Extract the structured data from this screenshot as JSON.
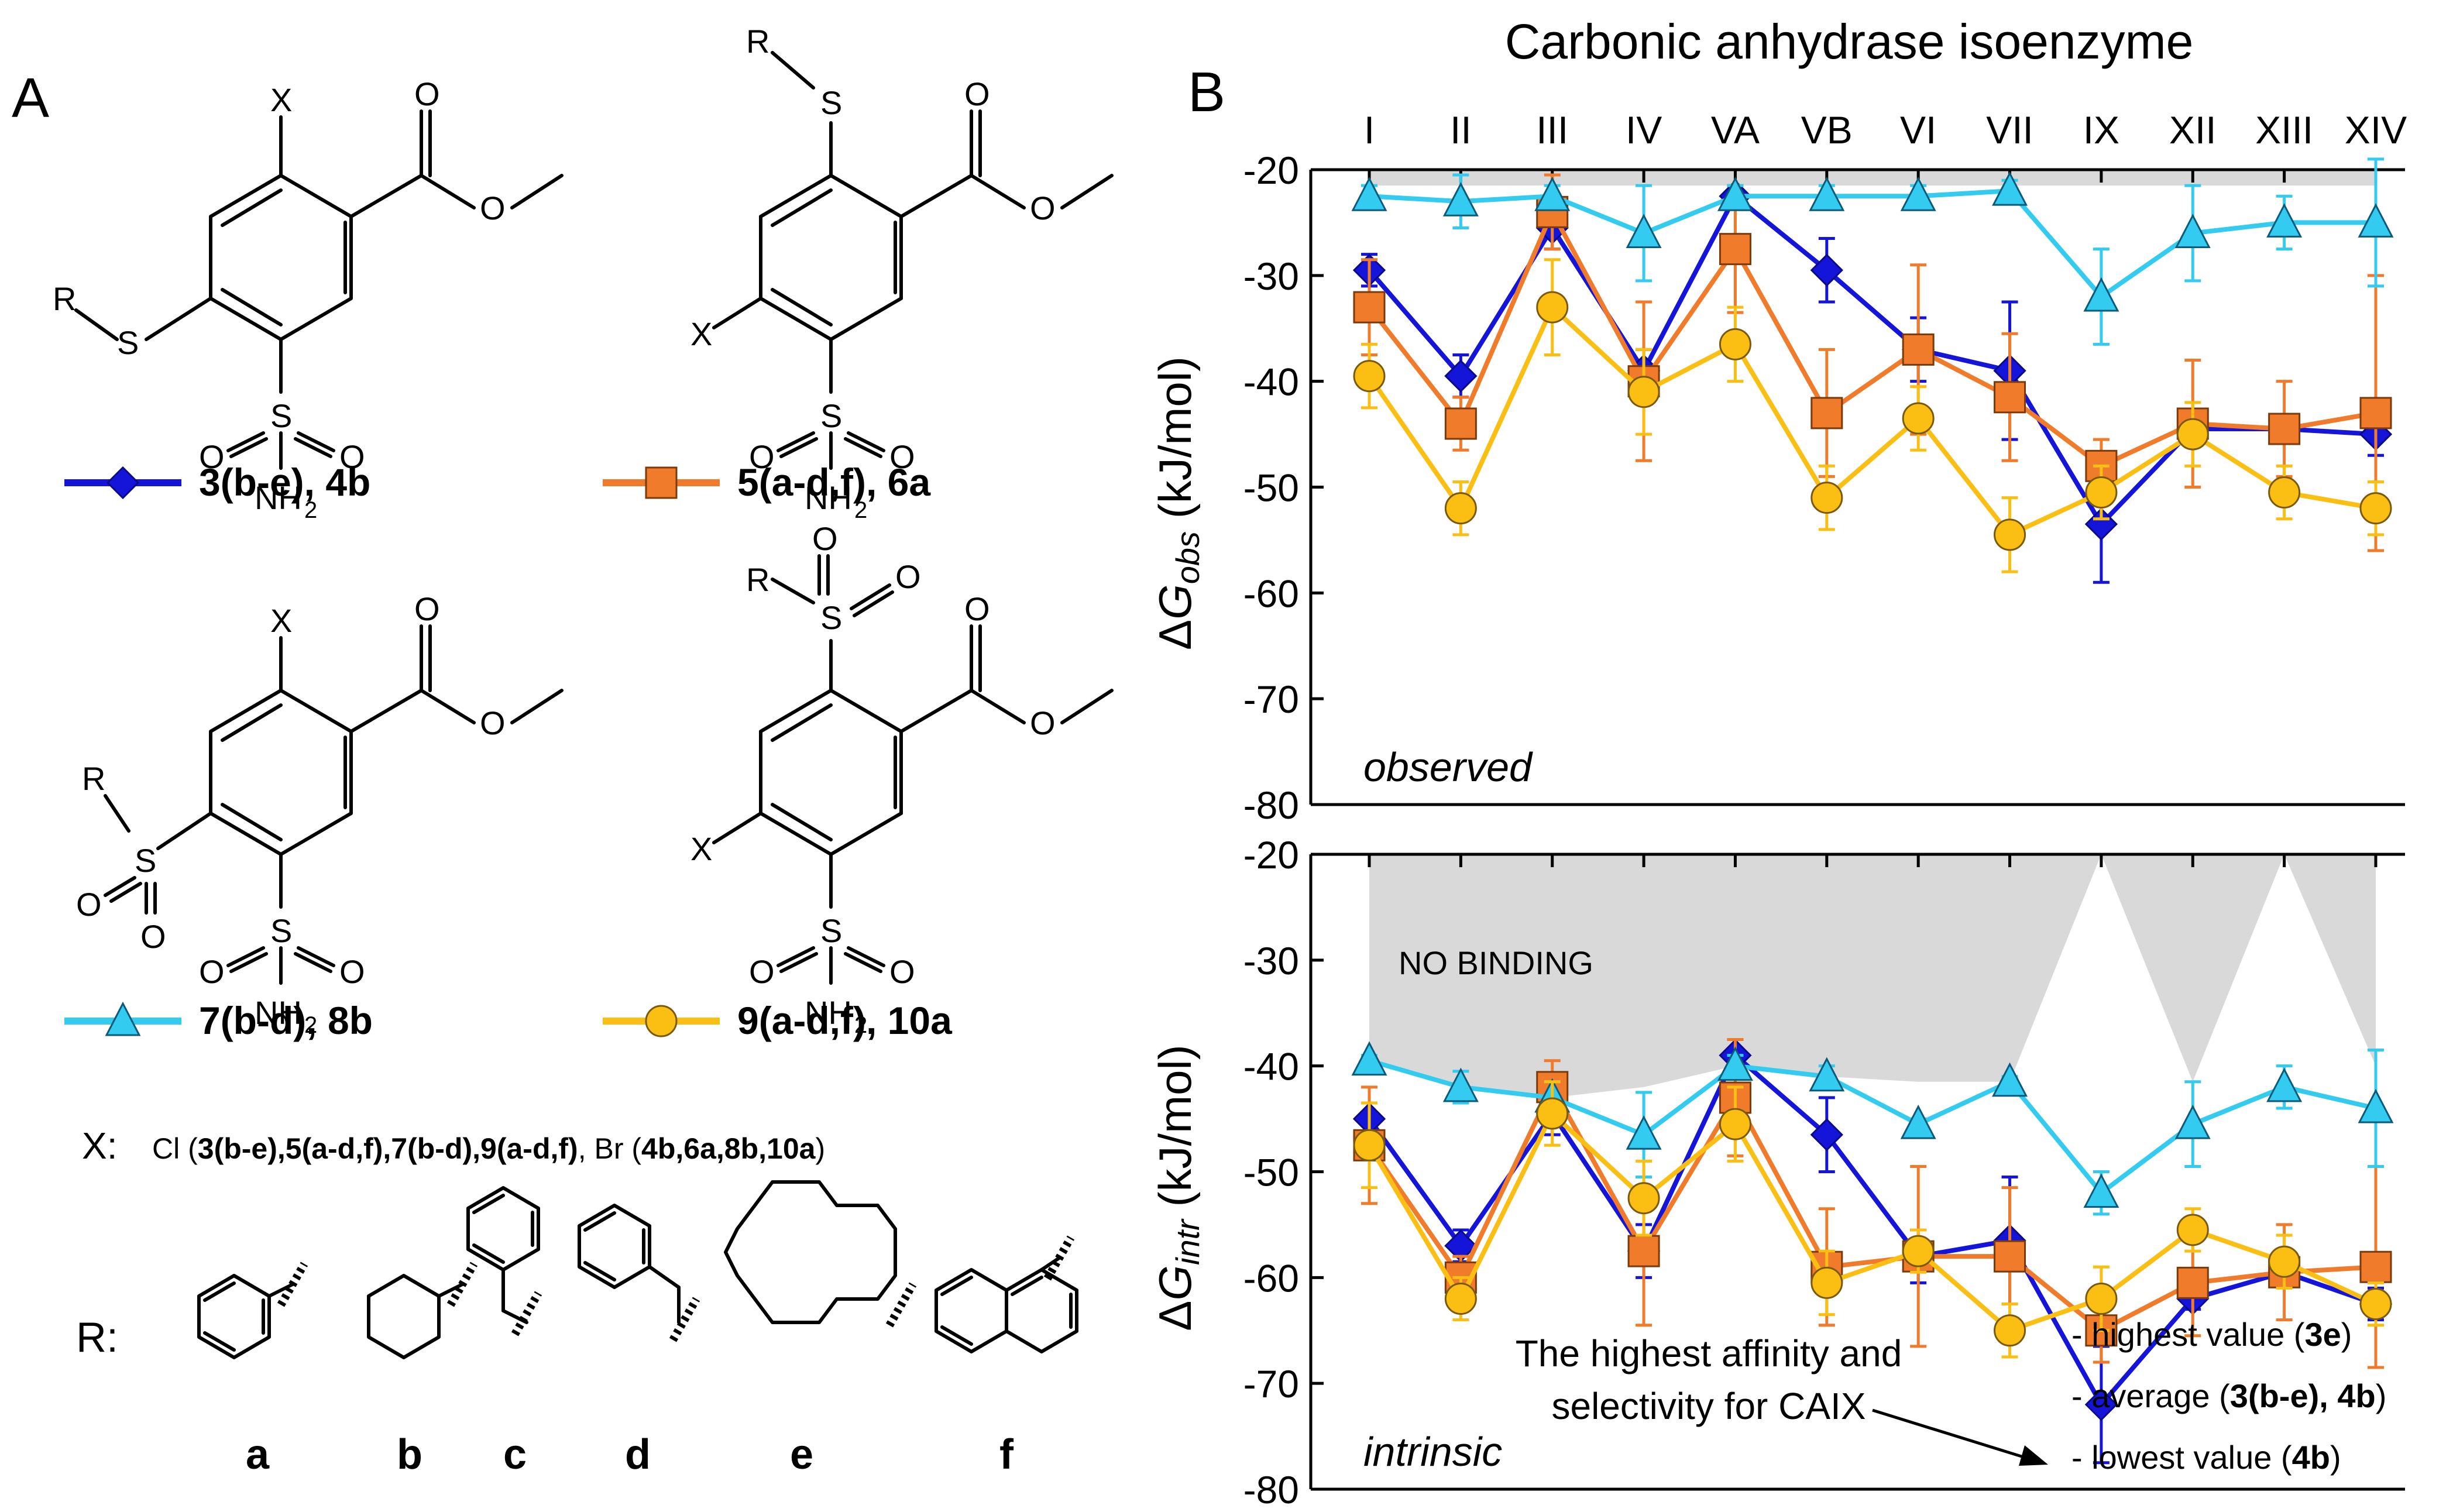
{
  "panel_a": {
    "label": "A",
    "structure_atoms": {
      "x": "X",
      "r": "R",
      "s": "S",
      "o": "O",
      "nh": "NH",
      "two": "2"
    },
    "legend": [
      {
        "name_main": "3(b-e)",
        "name_rest": ", 4b",
        "color": "#1515d9",
        "marker": "diamond"
      },
      {
        "name_main": "5(a-d,f)",
        "name_rest": ", 6a",
        "color": "#ef7b2b",
        "marker": "square"
      },
      {
        "name_main": "7(b-d)",
        "name_rest": ", 8b",
        "color": "#33ccf0",
        "marker": "triangle"
      },
      {
        "name_main": "9(a-d,f)",
        "name_rest": ", 10a",
        "color": "#fbbf14",
        "marker": "circle"
      }
    ],
    "x_line": {
      "label": "X:",
      "cl": "Cl (",
      "cl_list": "3(b-e),5(a-d,f),7(b-d),9(a-d,f)",
      "br": ", Br (",
      "br_list": "4b,6a,8b,10a",
      "close": ")"
    },
    "r_label": "R:",
    "r_letters": [
      "a",
      "b",
      "c",
      "d",
      "e",
      "f"
    ]
  },
  "panel_b": {
    "label": "B",
    "top_title": "Carbonic anhydrase isoenzyme",
    "ylabel_delta": "Δ",
    "ylabel_g": "G",
    "ylabel_obs_sub": "obs",
    "ylabel_intr_sub": "intr",
    "ylabel_unit": " (kJ/mol)",
    "observed_label": "observed",
    "intrinsic_label": "intrinsic",
    "no_binding": "NO BINDING",
    "annotation_line1": "The highest affinity and",
    "annotation_line2": "selectivity for CAIX",
    "highest_value": "- highest value (",
    "highest_value_cmpd": "3e",
    "average": "- average (",
    "average_cmpd": "3(b-e), 4b",
    "lowest_value": "- lowest value (",
    "lowest_value_cmpd": "4b",
    "close_paren": ")"
  },
  "chart_data": [
    {
      "type": "line",
      "title": "observed",
      "xlabel": "Carbonic anhydrase isoenzyme",
      "ylabel": "ΔGobs (kJ/mol)",
      "ylim": [
        -80,
        -20
      ],
      "yticks": [
        "-20",
        "-30",
        "-40",
        "-50",
        "-60",
        "-70",
        "-80"
      ],
      "categories": [
        "I",
        "II",
        "III",
        "IV",
        "VA",
        "VB",
        "VI",
        "VII",
        "IX",
        "XII",
        "XIII",
        "XIV"
      ],
      "series": [
        {
          "name": "3(b-e), 4b",
          "color": "#1515d9",
          "marker": "diamond",
          "values": [
            -29.5,
            -39.5,
            -25.5,
            -39.0,
            -22.5,
            -29.5,
            -37.0,
            -39.0,
            -53.5,
            -44.5,
            -44.5,
            -45.0
          ],
          "errors": [
            1.5,
            2.0,
            2.0,
            2.0,
            1.0,
            3.0,
            3.0,
            6.5,
            5.5,
            1.0,
            1.0,
            2.0
          ]
        },
        {
          "name": "5(a-d,f), 6a",
          "color": "#ef7b2b",
          "marker": "square",
          "values": [
            -33.0,
            -44.0,
            -24.0,
            -40.0,
            -27.5,
            -43.0,
            -37.0,
            -41.5,
            -48.0,
            -44.0,
            -44.5,
            -43.0
          ],
          "errors": [
            4.5,
            2.5,
            3.5,
            7.5,
            6.0,
            6.0,
            8.0,
            6.0,
            2.5,
            6.0,
            4.5,
            13.0
          ]
        },
        {
          "name": "7(b-d), 8b",
          "color": "#33ccf0",
          "marker": "triangle",
          "values": [
            -22.5,
            -23.0,
            -22.5,
            -26.0,
            -22.5,
            -22.5,
            -22.5,
            -22.0,
            -32.0,
            -26.0,
            -25.0,
            -25.0
          ],
          "errors": [
            1.0,
            2.5,
            1.0,
            4.5,
            1.0,
            1.0,
            1.0,
            1.0,
            4.5,
            4.5,
            2.5,
            6.0
          ]
        },
        {
          "name": "9(a-d,f), 10a",
          "color": "#fbbf14",
          "marker": "circle",
          "values": [
            -39.5,
            -52.0,
            -33.0,
            -41.0,
            -36.5,
            -51.0,
            -43.5,
            -54.5,
            -50.5,
            -45.0,
            -50.5,
            -52.0
          ],
          "errors": [
            3.0,
            2.5,
            4.5,
            4.0,
            3.5,
            3.0,
            3.0,
            3.5,
            2.5,
            3.0,
            2.5,
            2.5
          ]
        }
      ],
      "no_binding_limit": -21.5
    },
    {
      "type": "line",
      "title": "intrinsic",
      "ylabel": "ΔGintr (kJ/mol)",
      "ylim": [
        -80,
        -20
      ],
      "yticks": [
        "-20",
        "-30",
        "-40",
        "-50",
        "-60",
        "-70",
        "-80"
      ],
      "categories": [
        "I",
        "II",
        "III",
        "IV",
        "VA",
        "VB",
        "VI",
        "VII",
        "IX",
        "XII",
        "XIII",
        "XIV"
      ],
      "series": [
        {
          "name": "3(b-e), 4b",
          "color": "#1515d9",
          "marker": "diamond",
          "values": [
            -45.0,
            -57.0,
            -44.5,
            -57.5,
            -39.0,
            -46.5,
            -58.0,
            -56.5,
            -72.0,
            -62.0,
            -59.5,
            -62.5
          ],
          "errors": [
            1.5,
            1.5,
            2.0,
            2.5,
            1.5,
            3.5,
            2.5,
            6.0,
            5.5,
            1.0,
            1.0,
            1.5
          ]
        },
        {
          "name": "5(a-d,f), 6a",
          "color": "#ef7b2b",
          "marker": "square",
          "values": [
            -47.5,
            -60.0,
            -42.0,
            -57.5,
            -43.0,
            -59.0,
            -58.0,
            -58.0,
            -65.0,
            -60.5,
            -59.5,
            -59.0
          ],
          "errors": [
            5.5,
            2.0,
            2.5,
            7.0,
            5.5,
            5.5,
            8.5,
            6.5,
            3.0,
            5.0,
            4.5,
            9.5
          ]
        },
        {
          "name": "7(b-d), 8b",
          "color": "#33ccf0",
          "marker": "triangle",
          "values": [
            -39.5,
            -42.0,
            -43.0,
            -46.5,
            -40.0,
            -41.0,
            -45.5,
            -41.5,
            -52.0,
            -45.5,
            -42.0,
            -44.0
          ],
          "errors": [
            0.5,
            1.5,
            1.5,
            4.0,
            1.0,
            1.0,
            0.5,
            0.5,
            2.0,
            4.0,
            2.0,
            5.5
          ]
        },
        {
          "name": "9(a-d,f), 10a",
          "color": "#fbbf14",
          "marker": "circle",
          "values": [
            -47.5,
            -62.0,
            -44.5,
            -52.5,
            -45.5,
            -60.5,
            -57.5,
            -65.0,
            -62.0,
            -55.5,
            -58.5,
            -62.5
          ],
          "errors": [
            4.0,
            2.0,
            3.0,
            3.5,
            3.5,
            3.0,
            2.0,
            2.5,
            3.0,
            2.0,
            2.5,
            2.0
          ]
        }
      ],
      "no_binding_limit": [
        -39.5,
        -42.0,
        -43.0,
        -42.0,
        -40.0,
        -41.0,
        -41.5,
        -41.5,
        -20,
        -41.5,
        -20,
        -40.0
      ]
    }
  ]
}
